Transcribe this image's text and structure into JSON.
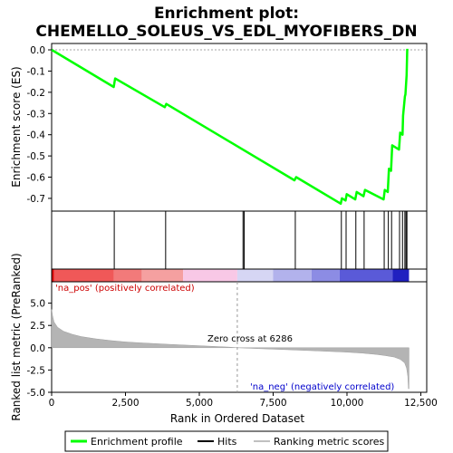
{
  "chart_data": {
    "type": "line",
    "title": "Enrichment plot:\nCHEMELLO_SOLEUS_VS_EDL_MYOFIBERS_DN",
    "top_panel": {
      "ylabel": "Enrichment score (ES)",
      "ylim": [
        -0.76,
        0.03
      ],
      "y_ticks": [
        "0.0",
        "-0.1",
        "-0.2",
        "-0.3",
        "-0.4",
        "-0.5",
        "-0.6",
        "-0.7"
      ],
      "y_tick_values": [
        0.0,
        -0.1,
        -0.2,
        -0.3,
        -0.4,
        -0.5,
        -0.6,
        -0.7
      ],
      "es_curve": {
        "x": [
          0,
          2100,
          2150,
          3830,
          3880,
          8220,
          8280,
          9790,
          9830,
          9950,
          9990,
          10280,
          10330,
          10560,
          10610,
          11240,
          11280,
          11380,
          11420,
          11490,
          11530,
          11760,
          11800,
          11880,
          11900,
          11960,
          11980,
          12020,
          12040
        ],
        "y": [
          0.0,
          -0.175,
          -0.135,
          -0.27,
          -0.255,
          -0.615,
          -0.6,
          -0.725,
          -0.7,
          -0.71,
          -0.68,
          -0.705,
          -0.67,
          -0.69,
          -0.66,
          -0.705,
          -0.66,
          -0.67,
          -0.56,
          -0.57,
          -0.45,
          -0.47,
          -0.39,
          -0.4,
          -0.31,
          -0.22,
          -0.21,
          -0.12,
          0.005
        ]
      }
    },
    "hits": [
      2120,
      3860,
      6480,
      6520,
      8250,
      9810,
      9970,
      10300,
      10580,
      11260,
      11400,
      11510,
      11780,
      11880,
      11960,
      12000,
      12030
    ],
    "heatmap": {
      "segments": [
        {
          "from": 0,
          "to": 80,
          "color": "#dd0000"
        },
        {
          "from": 80,
          "to": 2100,
          "color": "#f05858"
        },
        {
          "from": 2100,
          "to": 3050,
          "color": "#f27a7a"
        },
        {
          "from": 3050,
          "to": 4450,
          "color": "#f5a0a0"
        },
        {
          "from": 4450,
          "to": 6286,
          "color": "#f8c8e6"
        },
        {
          "from": 6286,
          "to": 7500,
          "color": "#d6d6f4"
        },
        {
          "from": 7500,
          "to": 8800,
          "color": "#b2b2ec"
        },
        {
          "from": 8800,
          "to": 9750,
          "color": "#8c8ce4"
        },
        {
          "from": 9750,
          "to": 11550,
          "color": "#5a5ad8"
        },
        {
          "from": 11550,
          "to": 12100,
          "color": "#2020c0"
        }
      ]
    },
    "bottom_panel": {
      "ylabel": "Ranked list metric (PreRanked)",
      "xlabel": "Rank in Ordered Dataset",
      "ylim": [
        -5.0,
        7.4
      ],
      "y_ticks": [
        "-5.0",
        "-2.5",
        "0.0",
        "2.5",
        "5.0"
      ],
      "y_tick_values": [
        -5.0,
        -2.5,
        0.0,
        2.5,
        5.0
      ],
      "metric": {
        "x": [
          0,
          30,
          80,
          200,
          400,
          700,
          1000,
          1500,
          2000,
          2500,
          3000,
          4000,
          5000,
          6000,
          6286,
          7000,
          8000,
          9000,
          10000,
          10500,
          11000,
          11300,
          11600,
          11800,
          11950,
          12020,
          12060,
          12080,
          12100
        ],
        "y": [
          4.3,
          3.6,
          2.9,
          2.3,
          1.85,
          1.5,
          1.25,
          1.0,
          0.8,
          0.65,
          0.55,
          0.38,
          0.22,
          0.07,
          0.0,
          -0.1,
          -0.22,
          -0.35,
          -0.5,
          -0.6,
          -0.75,
          -0.88,
          -1.05,
          -1.3,
          -1.7,
          -2.3,
          -3.2,
          -4.6,
          -4.6
        ]
      },
      "zero_cross_label": "Zero cross at 6286",
      "zero_cross": 6286,
      "pos_label": "'na_pos' (positively correlated)",
      "neg_label": "'na_neg' (negatively correlated)"
    },
    "x_ticks": [
      "0",
      "2,500",
      "5,000",
      "7,500",
      "10,000",
      "12,500"
    ],
    "x_tick_values": [
      0,
      2500,
      5000,
      7500,
      10000,
      12500
    ],
    "xlim": [
      0,
      12700
    ],
    "legend": {
      "items": [
        {
          "label": "Enrichment profile",
          "color": "#00ff00"
        },
        {
          "label": "Hits",
          "color": "#000000"
        },
        {
          "label": "Ranking metric scores",
          "color": "#c0c0c0"
        }
      ]
    }
  }
}
